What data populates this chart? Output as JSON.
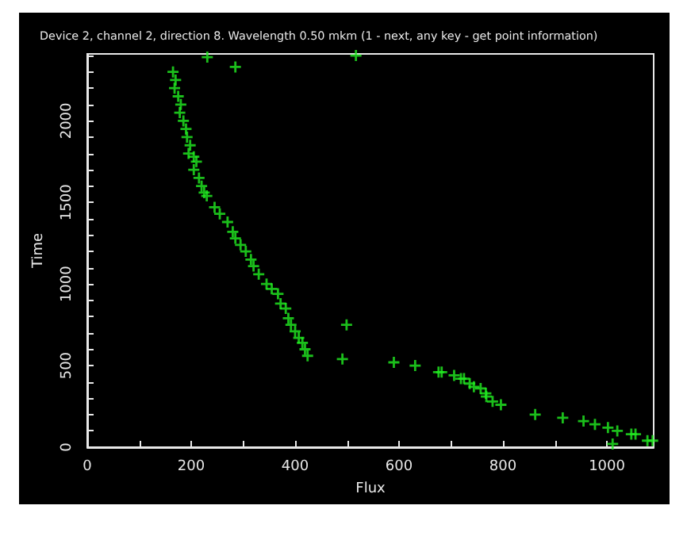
{
  "chart_data": {
    "type": "scatter",
    "title": "Device 2, channel 2, direction 8. Wavelength 0.50 mkm (1 - next, any key - get point information)",
    "xlabel": "Flux",
    "ylabel": "Time",
    "marker": "cross",
    "xlim": [
      0,
      1090
    ],
    "ylim": [
      0,
      2410
    ],
    "xticks": [
      0,
      {
        "value": 100,
        "label": null
      },
      200,
      {
        "value": 300,
        "label": null
      },
      400,
      {
        "value": 500,
        "label": null
      },
      600,
      {
        "value": 700,
        "label": null
      },
      800,
      {
        "value": 900,
        "label": null
      },
      1000
    ],
    "yticks": [
      0,
      {
        "value": 100,
        "label": null
      },
      {
        "value": 200,
        "label": null
      },
      {
        "value": 300,
        "label": null
      },
      {
        "value": 400,
        "label": null
      },
      500,
      {
        "value": 600,
        "label": null
      },
      {
        "value": 700,
        "label": null
      },
      {
        "value": 800,
        "label": null
      },
      {
        "value": 900,
        "label": null
      },
      1000,
      {
        "value": 1100,
        "label": null
      },
      {
        "value": 1200,
        "label": null
      },
      {
        "value": 1300,
        "label": null
      },
      {
        "value": 1400,
        "label": null
      },
      1500,
      {
        "value": 1600,
        "label": null
      },
      {
        "value": 1700,
        "label": null
      },
      {
        "value": 1800,
        "label": null
      },
      {
        "value": 1900,
        "label": null
      },
      2000,
      {
        "value": 2100,
        "label": null
      },
      {
        "value": 2200,
        "label": null
      },
      {
        "value": 2300,
        "label": null
      },
      {
        "value": 2400,
        "label": null
      }
    ],
    "series": [
      {
        "color": "#22ee22",
        "x": [
          231,
          517,
          285,
          165,
          170,
          168,
          175,
          180,
          178,
          185,
          190,
          192,
          198,
          195,
          205,
          210,
          205,
          215,
          220,
          225,
          230,
          245,
          255,
          270,
          280,
          285,
          295,
          305,
          315,
          320,
          330,
          345,
          355,
          367,
          372,
          382,
          387,
          392,
          400,
          407,
          414,
          419,
          424,
          491,
          499,
          590,
          631,
          676,
          682,
          706,
          719,
          725,
          736,
          744,
          757,
          767,
          768,
          780,
          796,
          862,
          915,
          955,
          977,
          1002,
          1020,
          1047,
          1055,
          1078,
          1088,
          1011
        ],
        "values": [
          2390,
          2400,
          2330,
          2300,
          2250,
          2200,
          2150,
          2100,
          2050,
          2000,
          1950,
          1900,
          1850,
          1800,
          1780,
          1750,
          1700,
          1650,
          1600,
          1560,
          1540,
          1470,
          1430,
          1380,
          1320,
          1280,
          1240,
          1200,
          1150,
          1110,
          1060,
          1000,
          970,
          940,
          880,
          850,
          790,
          750,
          710,
          670,
          640,
          600,
          560,
          540,
          750,
          520,
          500,
          460,
          460,
          440,
          420,
          420,
          390,
          370,
          360,
          330,
          310,
          280,
          260,
          200,
          180,
          160,
          140,
          120,
          100,
          80,
          80,
          40,
          40,
          20
        ]
      }
    ]
  }
}
